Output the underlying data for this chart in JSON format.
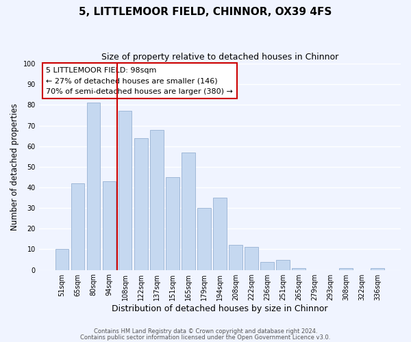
{
  "title": "5, LITTLEMOOR FIELD, CHINNOR, OX39 4FS",
  "subtitle": "Size of property relative to detached houses in Chinnor",
  "xlabel": "Distribution of detached houses by size in Chinnor",
  "ylabel": "Number of detached properties",
  "categories": [
    "51sqm",
    "65sqm",
    "80sqm",
    "94sqm",
    "108sqm",
    "122sqm",
    "137sqm",
    "151sqm",
    "165sqm",
    "179sqm",
    "194sqm",
    "208sqm",
    "222sqm",
    "236sqm",
    "251sqm",
    "265sqm",
    "279sqm",
    "293sqm",
    "308sqm",
    "322sqm",
    "336sqm"
  ],
  "values": [
    10,
    42,
    81,
    43,
    77,
    64,
    68,
    45,
    57,
    30,
    35,
    12,
    11,
    4,
    5,
    1,
    0,
    0,
    1,
    0,
    1
  ],
  "bar_color": "#c5d8f0",
  "bar_edge_color": "#a0b8d8",
  "vline_x_index": 3.5,
  "vline_color": "#cc0000",
  "ylim": [
    0,
    100
  ],
  "annotation_line1": "5 LITTLEMOOR FIELD: 98sqm",
  "annotation_line2": "← 27% of detached houses are smaller (146)",
  "annotation_line3": "70% of semi-detached houses are larger (380) →",
  "footer_line1": "Contains HM Land Registry data © Crown copyright and database right 2024.",
  "footer_line2": "Contains public sector information licensed under the Open Government Licence v3.0.",
  "background_color": "#f0f4ff",
  "grid_color": "#ffffff",
  "title_fontsize": 11,
  "subtitle_fontsize": 9,
  "tick_fontsize": 7,
  "ylabel_fontsize": 8.5,
  "xlabel_fontsize": 9,
  "annotation_fontsize": 8,
  "footer_fontsize": 6
}
